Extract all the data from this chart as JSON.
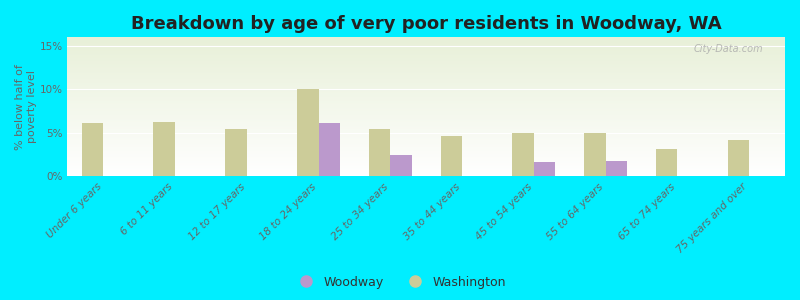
{
  "title": "Breakdown by age of very poor residents in Woodway, WA",
  "ylabel": "% below half of\npoverty level",
  "categories": [
    "Under 6 years",
    "6 to 11 years",
    "12 to 17 years",
    "18 to 24 years",
    "25 to 34 years",
    "35 to 44 years",
    "45 to 54 years",
    "55 to 64 years",
    "65 to 74 years",
    "75 years and over"
  ],
  "woodway_values": [
    null,
    null,
    null,
    6.2,
    2.5,
    null,
    1.7,
    1.8,
    null,
    null
  ],
  "washington_values": [
    6.2,
    6.3,
    5.5,
    10.0,
    5.5,
    4.6,
    5.0,
    5.0,
    3.1,
    4.2
  ],
  "woodway_color": "#bb99cc",
  "washington_color": "#cccc99",
  "background_color": "#00eeff",
  "ylim": [
    0,
    16
  ],
  "yticks": [
    0,
    5,
    10,
    15
  ],
  "ytick_labels": [
    "0%",
    "5%",
    "10%",
    "15%"
  ],
  "watermark": "City-Data.com",
  "bar_width": 0.3,
  "title_fontsize": 13,
  "axis_label_fontsize": 8,
  "tick_fontsize": 7.5,
  "legend_fontsize": 9
}
